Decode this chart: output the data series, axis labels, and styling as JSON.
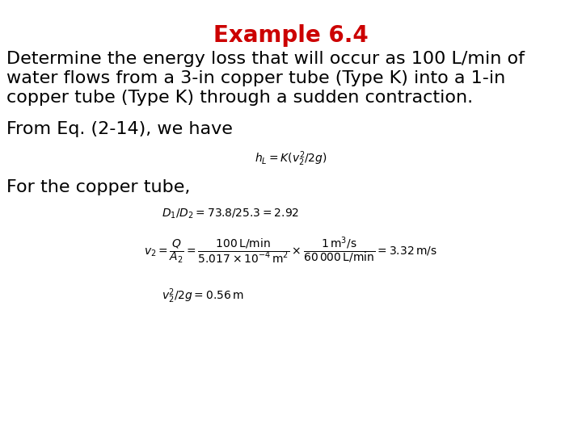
{
  "title": "Example 6.4",
  "title_color": "#CC0000",
  "title_fontsize": 20,
  "bg_color": "#FFFFFF",
  "body_text_1_line1": "Determine the energy loss that will occur as 100 L/min of",
  "body_text_1_line2": "water flows from a 3-in copper tube (Type K) into a 1-in",
  "body_text_1_line3": "copper tube (Type K) through a sudden contraction.",
  "body_text_2": "From Eq. (2-14), we have",
  "body_text_3": "For the copper tube,",
  "eq1": "$h_L = K(v_2^2/2g)$",
  "eq2_line1": "$D_1/D_2 = 73.8/25.3 = 2.92$",
  "eq2_line2": "$v_2 = \\dfrac{Q}{A_2} = \\dfrac{100\\,\\mathrm{L/min}}{5.017 \\times 10^{-4}\\,\\mathrm{m}^2} \\times \\dfrac{1\\,\\mathrm{m^3/s}}{60\\,000\\,\\mathrm{L/min}} = 3.32\\,\\mathrm{m/s}$",
  "eq2_line3": "$v_2^2/2g = 0.56\\,\\mathrm{m}$",
  "text_fontsize": 16,
  "eq_fontsize": 12,
  "small_eq_fontsize": 10
}
